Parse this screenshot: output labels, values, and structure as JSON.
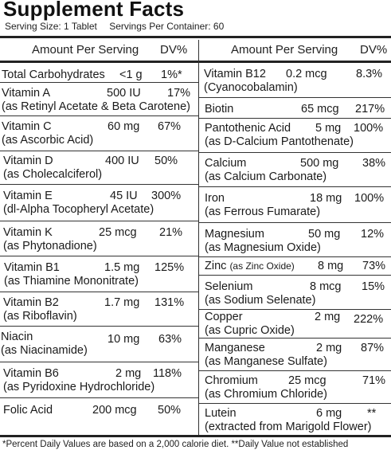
{
  "header": {
    "title": "Supplement Facts",
    "serving_size": "Serving Size: 1 Tablet",
    "servings_per_container": "Servings Per Container: 60"
  },
  "columns": {
    "left": {
      "amount": "Amount Per Serving",
      "dv": "DV%"
    },
    "right": {
      "amount": "Amount Per Serving",
      "dv": "DV%"
    }
  },
  "left": [
    {
      "name": "Total Carbohydrates",
      "amount": "<1 g",
      "dv": "1%*",
      "sub": ""
    },
    {
      "name": "Vitamin A",
      "amount": "500 IU",
      "dv": "17%",
      "sub": "(as Retinyl Acetate & Beta Carotene)"
    },
    {
      "name": "Vitamin C",
      "amount": "60 mg",
      "dv": "67%",
      "sub": "(as Ascorbic Acid)"
    },
    {
      "name": "Vitamin D",
      "amount": "400 IU",
      "dv": "50%",
      "sub": "(as Cholecalciferol)"
    },
    {
      "name": "Vitamin E",
      "amount": "45 IU",
      "dv": "300%",
      "sub": "(dl-Alpha Tocopheryl Acetate)"
    },
    {
      "name": "Vitamin K",
      "amount": "25 mcg",
      "dv": "21%",
      "sub": "(as Phytonadione)"
    },
    {
      "name": "Vitamin B1",
      "amount": "1.5 mg",
      "dv": "125%",
      "sub": "(as Thiamine Mononitrate)"
    },
    {
      "name": "Vitamin B2",
      "amount": "1.7 mg",
      "dv": "131%",
      "sub": "(as Riboflavin)"
    },
    {
      "name": "Niacin",
      "amount": "10 mg",
      "dv": "63%",
      "sub": "(as Niacinamide)"
    },
    {
      "name": "Vitamin B6",
      "amount": "2 mg",
      "dv": "118%",
      "sub": "(as Pyridoxine Hydrochloride)"
    },
    {
      "name": "Folic Acid",
      "amount": "200 mcg",
      "dv": "50%",
      "sub": ""
    }
  ],
  "right": [
    {
      "name": "Vitamin B12",
      "amount": "0.2 mcg",
      "dv": "8.3%",
      "sub": "(Cyanocobalamin)"
    },
    {
      "name": "Biotin",
      "amount": "65 mcg",
      "dv": "217%",
      "sub": ""
    },
    {
      "name": "Pantothenic Acid",
      "amount": "5 mg",
      "dv": "100%",
      "sub": "(as D-Calcium Pantothenate)"
    },
    {
      "name": "Calcium",
      "amount": "500 mg",
      "dv": "38%",
      "sub": "(as Calcium Carbonate)"
    },
    {
      "name": "Iron",
      "amount": "18 mg",
      "dv": "100%",
      "sub": "(as Ferrous Fumarate)"
    },
    {
      "name": "Magnesium",
      "amount": "50 mg",
      "dv": "12%",
      "sub": "(as Magnesium Oxide)"
    },
    {
      "name": "Zinc",
      "name_note": "(as Zinc Oxide)",
      "amount": "8 mg",
      "dv": "73%",
      "sub": ""
    },
    {
      "name": "Selenium",
      "amount": "8 mcg",
      "dv": "15%",
      "sub": "(as Sodium Selenate)"
    },
    {
      "name": "Copper",
      "amount": "2 mg",
      "dv": "222%",
      "sub": "(as Cupric Oxide)"
    },
    {
      "name": "Manganese",
      "amount": "2 mg",
      "dv": "87%",
      "sub": "(as Manganese Sulfate)"
    },
    {
      "name": "Chromium",
      "amount": "25 mcg",
      "dv": "71%",
      "sub": "(as Chromium Chloride)"
    },
    {
      "name": "Lutein",
      "amount": "6 mg",
      "dv": "**",
      "sub": "(extracted from Marigold Flower)"
    }
  ],
  "footer": "*Percent Daily Values are based on a 2,000 calorie diet. **Daily Value not established"
}
